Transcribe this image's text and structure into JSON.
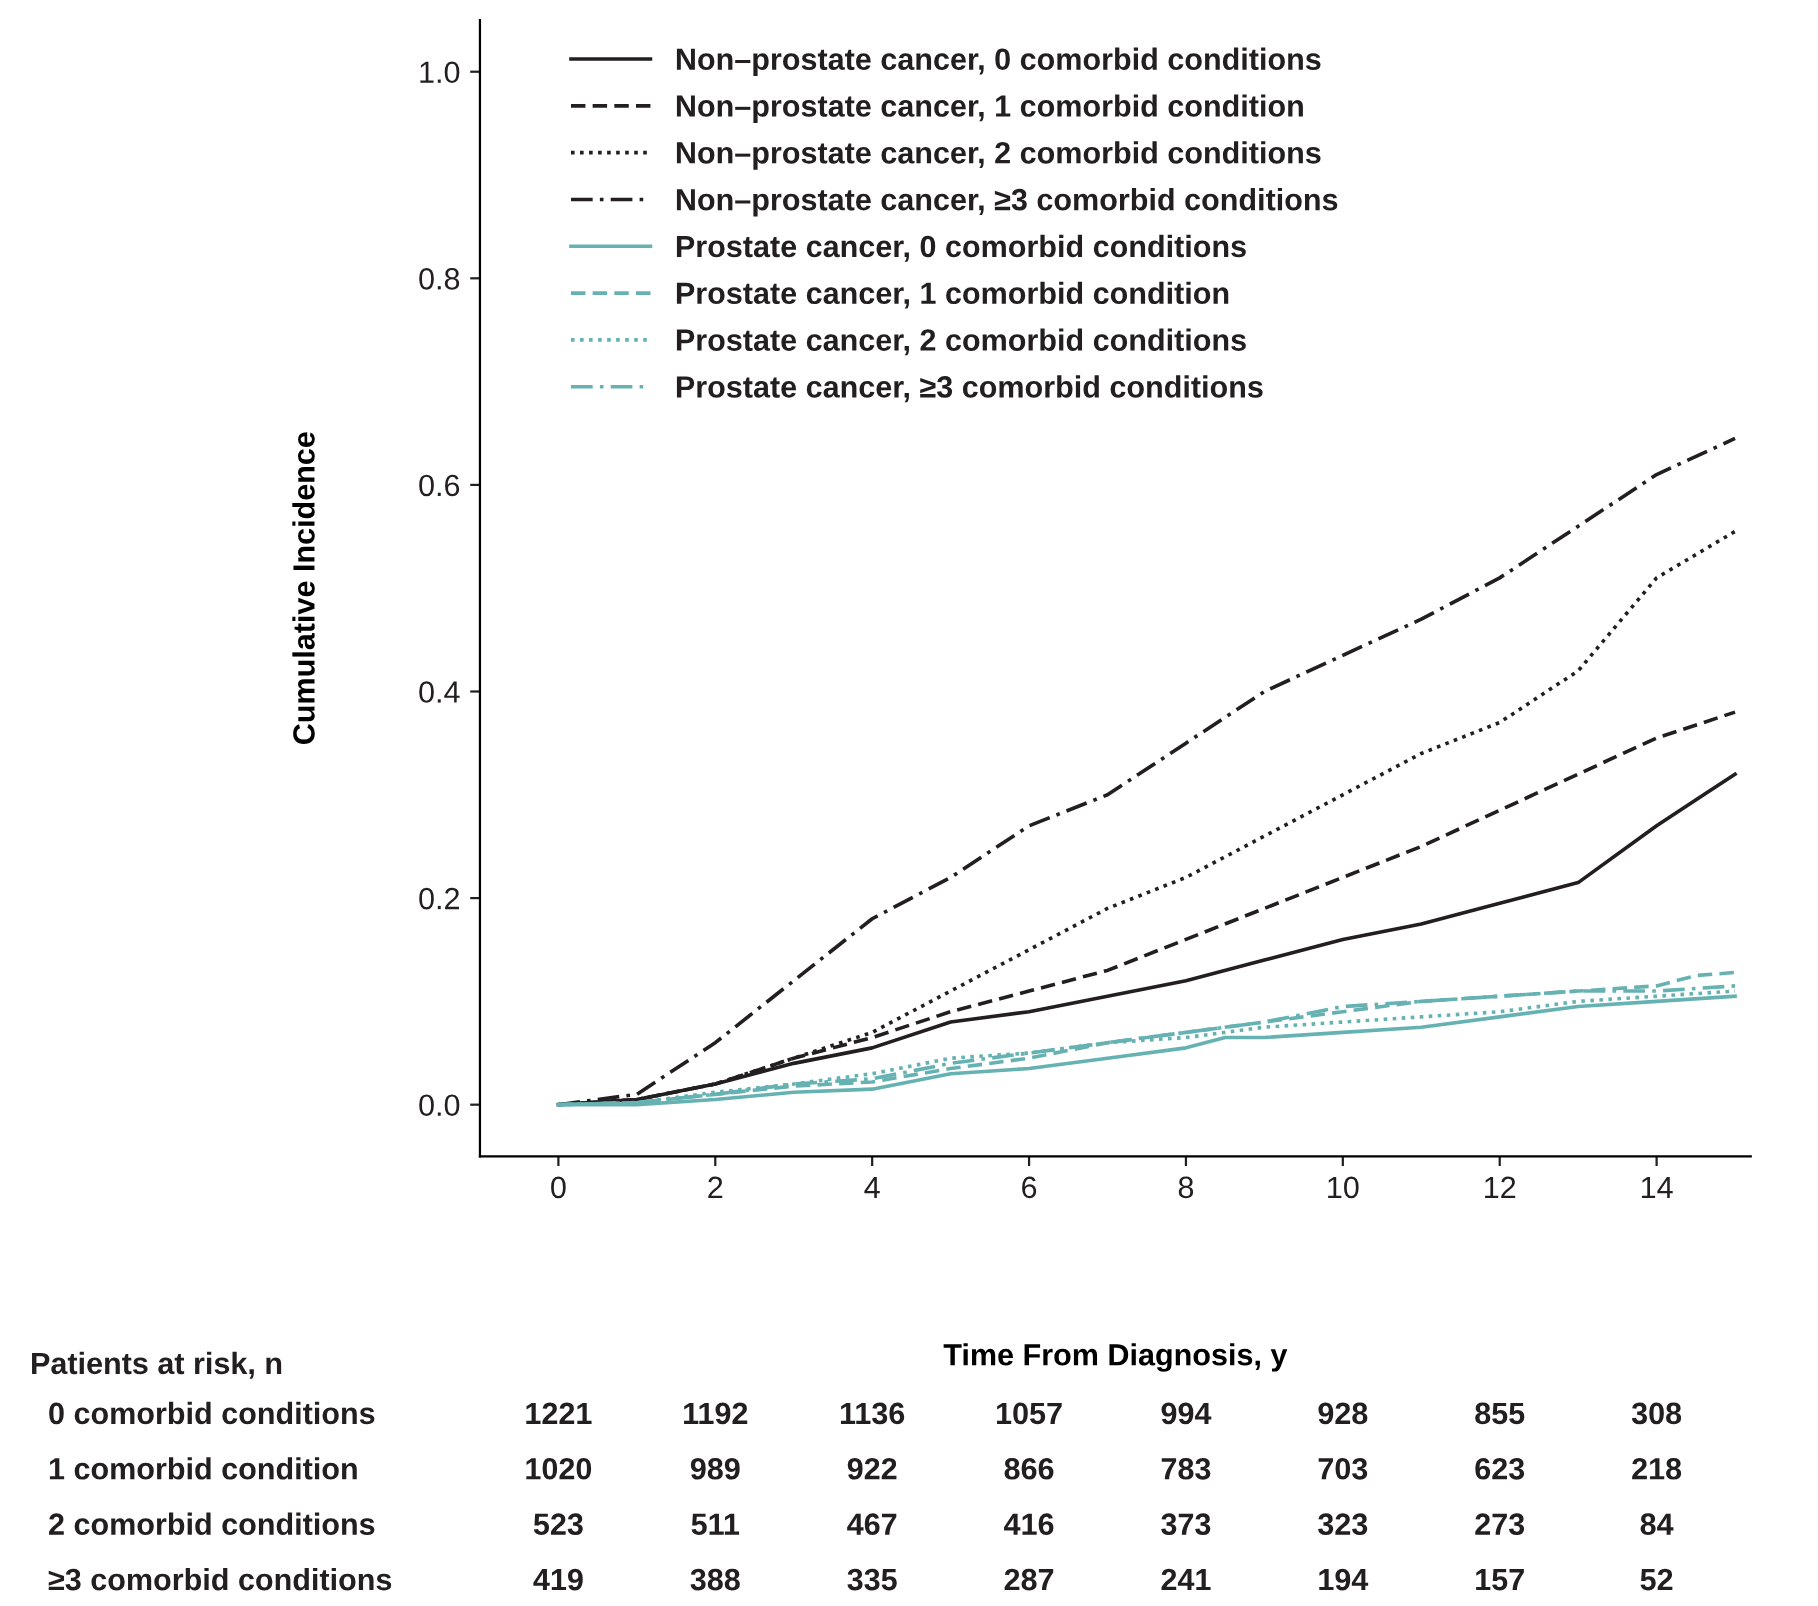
{
  "chart_data": {
    "type": "line",
    "xlabel": "Time From Diagnosis, y",
    "ylabel": "Cumulative Incidence",
    "xlim": [
      -1,
      15.2
    ],
    "ylim": [
      -0.05,
      1.05
    ],
    "xticks": [
      0,
      2,
      4,
      6,
      8,
      10,
      12,
      14
    ],
    "yticks": [
      {
        "value": 0,
        "label": "0.0"
      },
      {
        "value": 0.2,
        "label": "0.2"
      },
      {
        "value": 0.4,
        "label": "0.4"
      },
      {
        "value": 0.6,
        "label": "0.6"
      },
      {
        "value": 0.8,
        "label": "0.8"
      },
      {
        "value": 1.0,
        "label": "1.0"
      }
    ],
    "grid": false,
    "legend": "top left",
    "series": [
      {
        "name": "Non–prostate cancer, 0 comorbid conditions",
        "color": "#231f20",
        "line_style": "solid",
        "x": [
          0,
          1,
          2,
          3,
          4,
          5,
          6,
          7,
          8,
          9,
          10,
          11,
          12,
          13,
          14,
          14.6,
          15
        ],
        "values": [
          0,
          0.005,
          0.02,
          0.04,
          0.055,
          0.08,
          0.09,
          0.105,
          0.12,
          0.14,
          0.16,
          0.175,
          0.195,
          0.215,
          0.27,
          0.3,
          0.32
        ]
      },
      {
        "name": "Non–prostate cancer, 1 comorbid condition",
        "color": "#231f20",
        "line_style": "dashed",
        "x": [
          0,
          1,
          2,
          3,
          4,
          5,
          6,
          7,
          8,
          9,
          10,
          11,
          12,
          13,
          14,
          15
        ],
        "values": [
          0,
          0.005,
          0.02,
          0.045,
          0.065,
          0.09,
          0.11,
          0.13,
          0.16,
          0.19,
          0.22,
          0.25,
          0.285,
          0.32,
          0.355,
          0.38
        ]
      },
      {
        "name": "Non–prostate cancer, 2 comorbid conditions",
        "color": "#231f20",
        "line_style": "dotted",
        "x": [
          0,
          1,
          2,
          3,
          4,
          4.5,
          5,
          6,
          7,
          8,
          9,
          10,
          11,
          12,
          13,
          14,
          15
        ],
        "values": [
          0,
          0.005,
          0.02,
          0.045,
          0.07,
          0.09,
          0.11,
          0.15,
          0.19,
          0.22,
          0.26,
          0.3,
          0.34,
          0.37,
          0.42,
          0.51,
          0.555
        ]
      },
      {
        "name": "Non–prostate cancer, ≥3 comorbid conditions",
        "color": "#231f20",
        "line_style": "dashdot",
        "x": [
          0,
          1,
          2,
          3,
          4,
          5,
          6,
          7,
          8,
          9,
          10,
          11,
          12,
          13,
          14,
          15
        ],
        "values": [
          0,
          0.01,
          0.06,
          0.12,
          0.18,
          0.22,
          0.27,
          0.3,
          0.35,
          0.4,
          0.435,
          0.47,
          0.51,
          0.56,
          0.61,
          0.645
        ]
      },
      {
        "name": "Prostate cancer, 0 comorbid conditions",
        "color": "#66b2b2",
        "line_style": "solid",
        "x": [
          0,
          1,
          2,
          3,
          4,
          5,
          6,
          7,
          8,
          8.5,
          9,
          10,
          11,
          12,
          13,
          14,
          15
        ],
        "values": [
          0,
          0,
          0.005,
          0.012,
          0.015,
          0.03,
          0.035,
          0.045,
          0.055,
          0.065,
          0.065,
          0.07,
          0.075,
          0.085,
          0.095,
          0.1,
          0.105
        ]
      },
      {
        "name": "Prostate cancer, 1 comorbid condition",
        "color": "#66b2b2",
        "line_style": "dashed",
        "x": [
          0,
          1,
          2,
          3,
          4,
          5,
          6,
          7,
          8,
          9,
          10,
          11,
          12,
          13,
          14,
          14.5,
          15
        ],
        "values": [
          0,
          0.002,
          0.01,
          0.018,
          0.022,
          0.035,
          0.045,
          0.06,
          0.07,
          0.08,
          0.09,
          0.1,
          0.105,
          0.11,
          0.115,
          0.125,
          0.128
        ]
      },
      {
        "name": "Prostate cancer, 2 comorbid conditions",
        "color": "#66b2b2",
        "line_style": "dotted",
        "x": [
          0,
          1,
          2,
          3,
          4,
          5,
          6,
          7,
          8,
          9,
          10,
          11,
          12,
          13,
          14,
          15
        ],
        "values": [
          0,
          0.002,
          0.012,
          0.02,
          0.03,
          0.045,
          0.05,
          0.06,
          0.065,
          0.075,
          0.08,
          0.085,
          0.09,
          0.1,
          0.105,
          0.11
        ]
      },
      {
        "name": "Prostate cancer, ≥3 comorbid conditions",
        "color": "#66b2b2",
        "line_style": "dashdot",
        "x": [
          0,
          1,
          2,
          3,
          4,
          5,
          6,
          7,
          8,
          9,
          10,
          11,
          12,
          13,
          14,
          15
        ],
        "values": [
          0,
          0.002,
          0.01,
          0.02,
          0.025,
          0.04,
          0.05,
          0.06,
          0.07,
          0.08,
          0.095,
          0.1,
          0.105,
          0.11,
          0.11,
          0.115
        ]
      }
    ],
    "annotations": [
      "Patients at risk, n",
      "0 comorbid conditions",
      "1221",
      "1192",
      "1136",
      "1057",
      "994",
      "928",
      "855",
      "308",
      "1 comorbid condition",
      "1020",
      "989",
      "922",
      "866",
      "783",
      "703",
      "623",
      "218",
      "2 comorbid conditions",
      "523",
      "511",
      "467",
      "416",
      "373",
      "323",
      "273",
      "84",
      "≥3 comorbid conditions",
      "419",
      "388",
      "335",
      "287",
      "241",
      "194",
      "157",
      "52"
    ]
  }
}
